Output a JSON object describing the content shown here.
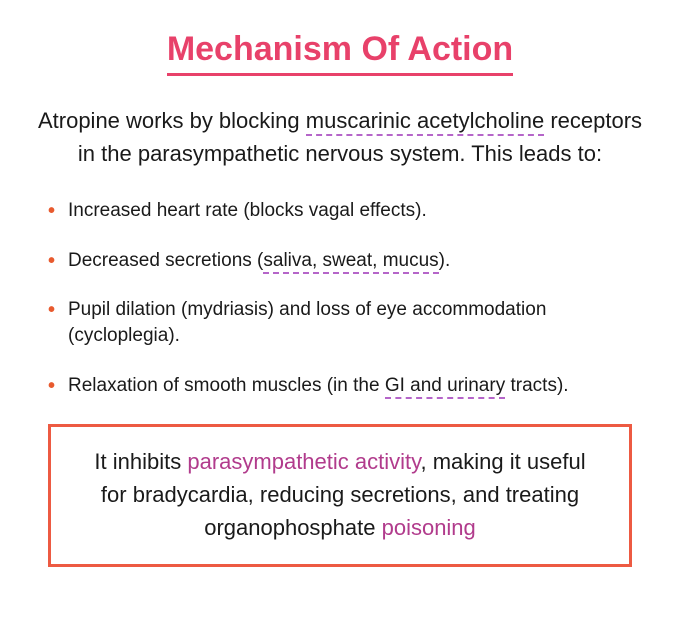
{
  "title": "Mechanism Of Action",
  "intro": {
    "seg1": "Atropine works by blocking ",
    "dashed1": "muscarinic acetylcholine",
    "seg2": " receptors in the parasympathetic nervous system. This leads to:"
  },
  "bullets": [
    {
      "text": "Increased heart rate (blocks vagal effects)."
    },
    {
      "pre": "Decreased secretions (",
      "dashed": "saliva, sweat, mucus",
      "post": ")."
    },
    {
      "text": "Pupil dilation (mydriasis) and loss of eye accommodation (cycloplegia)."
    },
    {
      "pre": "Relaxation of smooth muscles (in the ",
      "dashed": "GI and urinary",
      "post": " tracts)."
    }
  ],
  "callout": {
    "seg1": "It inhibits ",
    "pink1": "parasympathetic activity",
    "seg2": ", making it useful for bradycardia, reducing secretions, and treating organophosphate ",
    "pink2": "poisoning"
  },
  "colors": {
    "title": "#e8416a",
    "bullet_marker": "#e85a2e",
    "dashed_underline": "#b565c9",
    "callout_border": "#ed5a42",
    "pink_text": "#b13b8c",
    "body_text": "#1a1a1a",
    "background": "#ffffff"
  },
  "typography": {
    "title_fontsize": 34,
    "title_weight": 700,
    "intro_fontsize": 22,
    "bullet_fontsize": 19,
    "callout_fontsize": 22,
    "font_family": "Segoe UI, Arial, sans-serif"
  }
}
